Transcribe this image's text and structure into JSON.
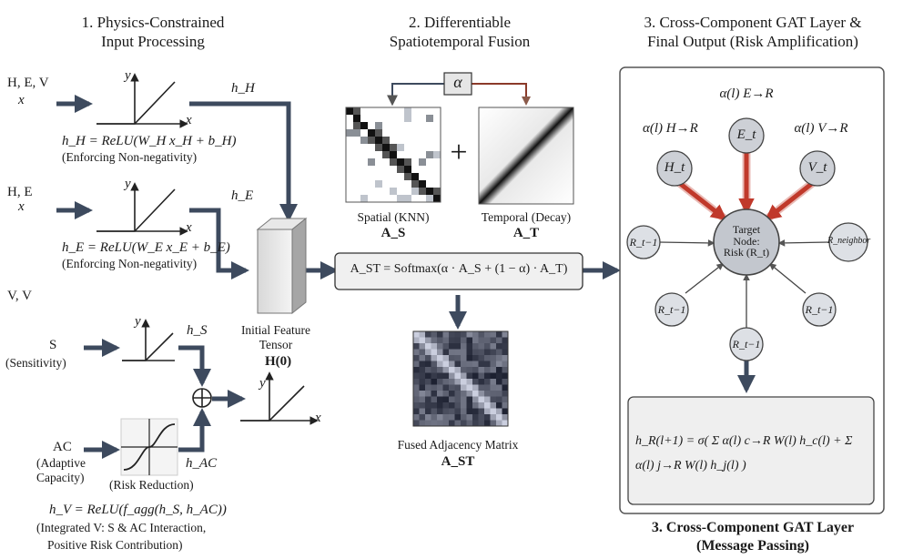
{
  "sections": {
    "s1": {
      "line1": "1. Physics-Constrained",
      "line2": "Input Processing"
    },
    "s2": {
      "line1": "2. Differentiable",
      "line2": "Spatiotemporal Fusion"
    },
    "s3": {
      "line1": "3. Cross-Component GAT Layer &",
      "line2": "Final Output (Risk Amplification)"
    }
  },
  "inputs": {
    "hev": {
      "label": "H, E, V",
      "x": "x",
      "out": "h_H",
      "eq": "h_H = ReLU(W_H x_H + b_H)",
      "note": "(Enforcing Non-negativity)"
    },
    "he": {
      "label": "H, E",
      "x": "x",
      "out": "h_E",
      "eq": "h_E = ReLU(W_E x_E + b_E)",
      "note": "(Enforcing Non-negativity)"
    },
    "vv": {
      "label": "V, V"
    },
    "s": {
      "label": "S",
      "sub": "(Sensitivity)",
      "out": "h_S"
    },
    "ac": {
      "label": "AC",
      "sub1": "(Adaptive",
      "sub2": "Capacity)",
      "risk": "(Risk Reduction)",
      "out": "h_AC"
    },
    "hv": {
      "eq": "h_V = ReLU(f_agg(h_S, h_AC))",
      "note1": "(Integrated V: S & AC Interaction,",
      "note2": "Positive Risk Contribution)"
    }
  },
  "axes": {
    "y": "y",
    "x": "x"
  },
  "tensor": {
    "line1": "Initial Feature",
    "line2": "Tensor",
    "sym": "H(0)"
  },
  "alpha": "α",
  "plus": "+",
  "spatial": {
    "label": "Spatial (KNN)",
    "sym": "A_S"
  },
  "temporal": {
    "label": "Temporal (Decay)",
    "sym": "A_T"
  },
  "fusion_eq": "A_ST = Softmax(α · A_S + (1 − α) · A_T)",
  "fused": {
    "label": "Fused Adjacency Matrix",
    "sym": "A_ST"
  },
  "gat": {
    "nodes": {
      "H": "H_t",
      "E": "E_t",
      "V": "V_t"
    },
    "alphas": {
      "H": "α(l) H→R",
      "E": "α(l) E→R",
      "V": "α(l) V→R"
    },
    "target": {
      "l1": "Target",
      "l2": "Node:",
      "l3": "Risk (R_t)"
    },
    "neighbors": [
      "R_t−1",
      "R_neighbor",
      "R_t−1",
      "R_t−1",
      "R_t−1"
    ],
    "update": "h_R(l+1) = σ( Σ α(l) c→R W(l) h_c(l) + Σ α(l) j→R W(l) h_j(l) )",
    "caption1": "3. Cross-Component GAT Layer",
    "caption2": "(Message Passing)"
  },
  "colors": {
    "arrow": "#3d4a5e",
    "red": "#c0392b",
    "node": "#c8cbd1",
    "panel": "#f2f2f2"
  }
}
